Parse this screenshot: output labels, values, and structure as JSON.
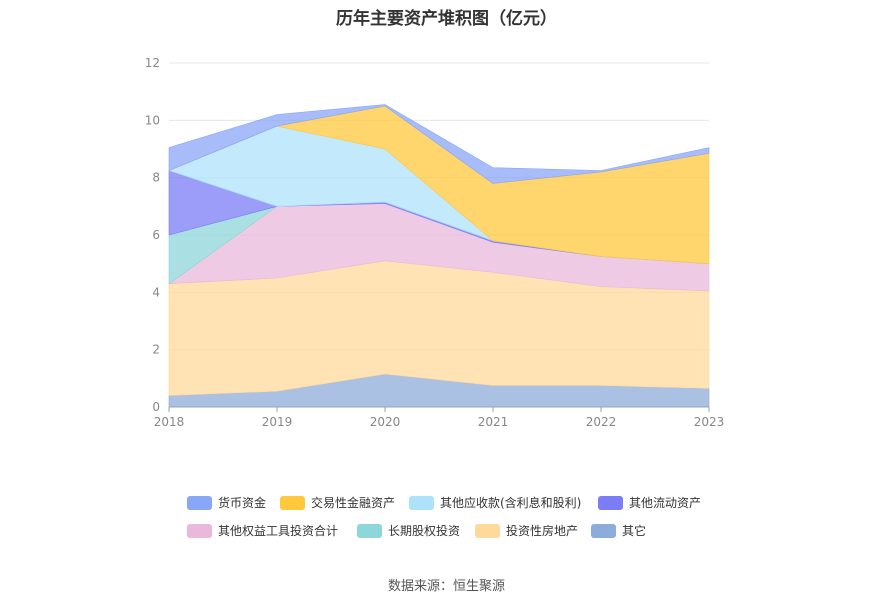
{
  "chart_data": {
    "type": "area",
    "stacked": true,
    "title": "历年主要资产堆积图（亿元）",
    "source": "数据来源：恒生聚源",
    "categories": [
      "2018",
      "2019",
      "2020",
      "2021",
      "2022",
      "2023"
    ],
    "ylim": [
      0,
      12
    ],
    "yticks": [
      "0",
      "2",
      "4",
      "6",
      "8",
      "10",
      "12"
    ],
    "grid": true,
    "legend_placement": "bottom",
    "series": [
      {
        "name": "其它",
        "color": "#8eacdb",
        "values": [
          0.4,
          0.55,
          1.15,
          0.75,
          0.75,
          0.65
        ]
      },
      {
        "name": "投资性房地产",
        "color": "#ffd99b",
        "values": [
          3.9,
          3.95,
          3.95,
          3.95,
          3.45,
          3.4
        ]
      },
      {
        "name": "其他权益工具投资合计",
        "color": "#eab8db",
        "values": [
          0,
          2.5,
          2.0,
          1.05,
          1.05,
          0.95
        ]
      },
      {
        "name": "长期股权投资",
        "color": "#8dd6d9",
        "values": [
          1.7,
          0,
          0,
          0,
          0,
          0
        ]
      },
      {
        "name": "其他流动资产",
        "color": "#7b7cf6",
        "values": [
          2.25,
          0,
          0.05,
          0.05,
          0,
          0
        ]
      },
      {
        "name": "其他应收款(含利息和股利)",
        "color": "#aee2fb",
        "values": [
          0,
          2.8,
          1.85,
          0,
          0,
          0
        ]
      },
      {
        "name": "交易性金融资产",
        "color": "#ffc83d",
        "values": [
          0,
          0,
          1.5,
          2.0,
          2.95,
          3.85
        ]
      },
      {
        "name": "货币资金",
        "color": "#8aa6f7",
        "values": [
          0.8,
          0.4,
          0.05,
          0.55,
          0.05,
          0.2
        ]
      }
    ],
    "legend_order": [
      "货币资金",
      "交易性金融资产",
      "其他应收款(含利息和股利)",
      "其他流动资产",
      "其他权益工具投资合计",
      "长期股权投资",
      "投资性房地产",
      "其它"
    ]
  }
}
